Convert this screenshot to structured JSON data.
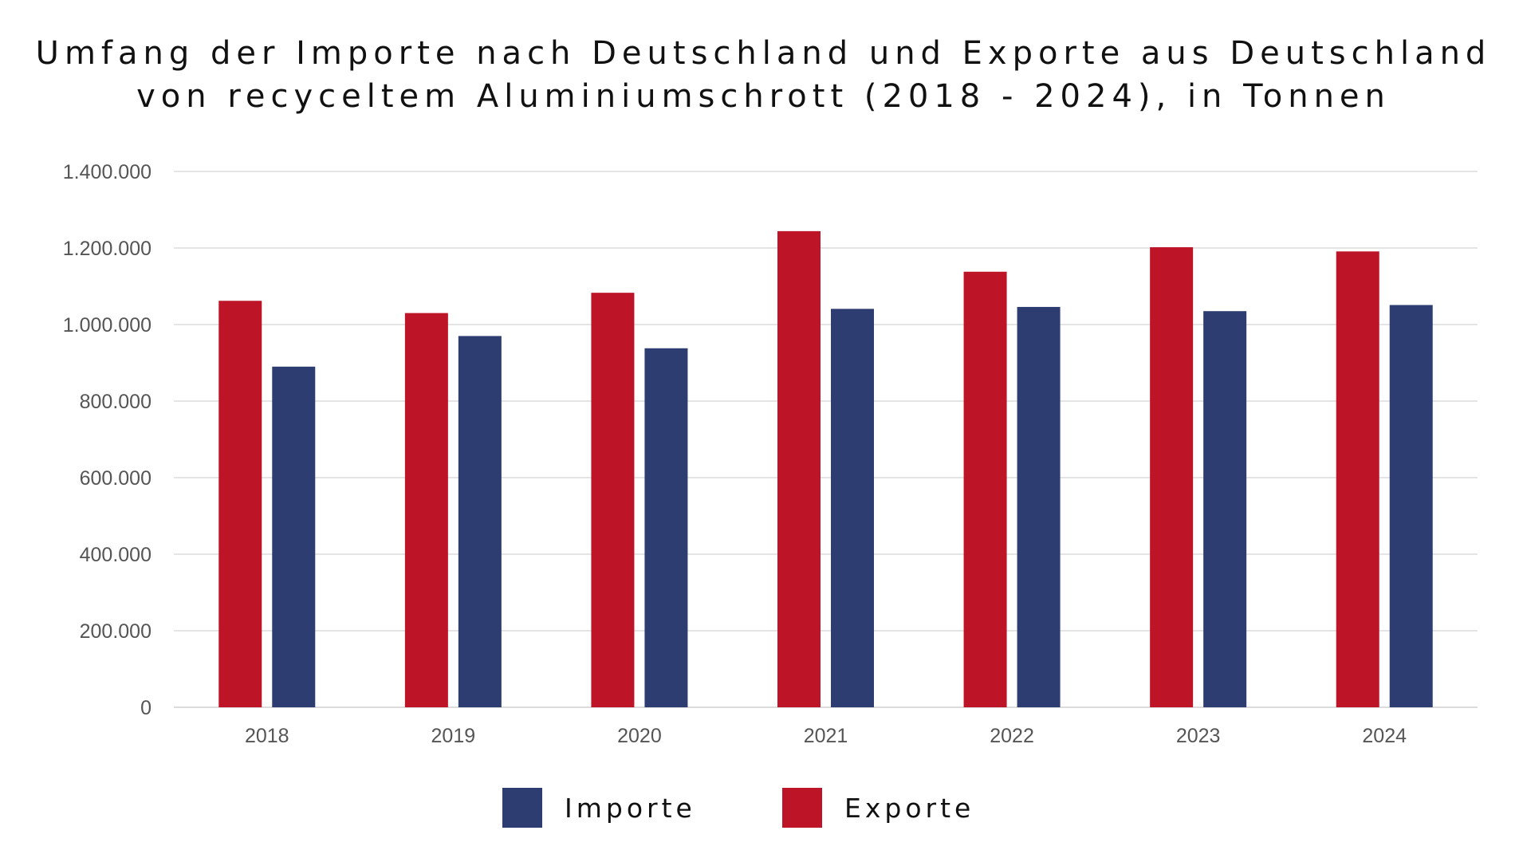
{
  "title_lines": [
    "Umfang der Importe nach Deutschland und Exporte aus Deutschland",
    "von recyceltem Aluminiumschrott (2018 - 2024), in Tonnen"
  ],
  "colors": {
    "exporte": "#BD1428",
    "importe": "#2D3D71",
    "grid": "#dcdcdc",
    "tick_text": "#555555"
  },
  "legend": [
    {
      "label": "Importe",
      "color": "#2D3D71"
    },
    {
      "label": "Exporte",
      "color": "#BD1428"
    }
  ],
  "chart_data": {
    "type": "bar",
    "title": "Umfang der Importe nach Deutschland und Exporte aus Deutschland von recyceltem Aluminiumschrott (2018 - 2024), in Tonnen",
    "categories": [
      "2018",
      "2019",
      "2020",
      "2021",
      "2022",
      "2023",
      "2024"
    ],
    "series": [
      {
        "name": "Exporte",
        "values": [
          1062000,
          1030000,
          1083000,
          1244000,
          1138000,
          1202000,
          1191000
        ]
      },
      {
        "name": "Importe",
        "values": [
          890000,
          970000,
          938000,
          1041000,
          1046000,
          1035000,
          1051000
        ]
      }
    ],
    "ylim": [
      0,
      1400000
    ],
    "yticks": [
      0,
      200000,
      400000,
      600000,
      800000,
      1000000,
      1200000,
      1400000
    ],
    "ytick_labels": [
      "0",
      "200.000",
      "400.000",
      "600.000",
      "800.000",
      "1.000.000",
      "1.200.000",
      "1.400.000"
    ],
    "grid": true,
    "legend_position": "bottom",
    "xlabel": "",
    "ylabel": ""
  }
}
